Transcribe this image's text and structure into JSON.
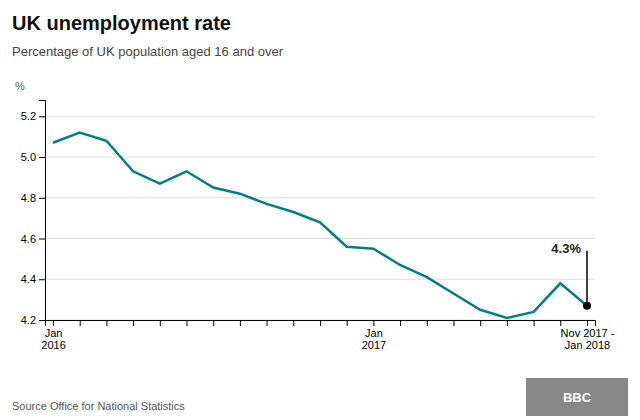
{
  "chart_data": {
    "type": "line",
    "title": "UK unemployment rate",
    "subtitle": "Percentage of UK population aged 16 and over",
    "source": "Source Office for National Statistics",
    "ylabel": "%",
    "annotation": "4.3%",
    "logo": "BBC",
    "categories": [
      "Jan\n2016",
      null,
      null,
      null,
      null,
      null,
      null,
      null,
      null,
      null,
      null,
      null,
      "Jan\n2017",
      null,
      null,
      null,
      null,
      null,
      null,
      null,
      "Nov 2017 -\nJan 2018"
    ],
    "values": [
      5.07,
      5.12,
      5.08,
      4.93,
      4.87,
      4.93,
      4.85,
      4.82,
      4.77,
      4.73,
      4.68,
      4.56,
      4.55,
      4.47,
      4.41,
      4.33,
      4.25,
      4.21,
      4.24,
      4.38,
      4.27
    ],
    "color": "#008080",
    "ylim": [
      4.2,
      5.28
    ],
    "yticks": [
      4.2,
      4.4,
      4.6,
      4.8,
      {
        "value": 5.0,
        "label": "5.0"
      },
      5.2
    ],
    "grid": true
  }
}
